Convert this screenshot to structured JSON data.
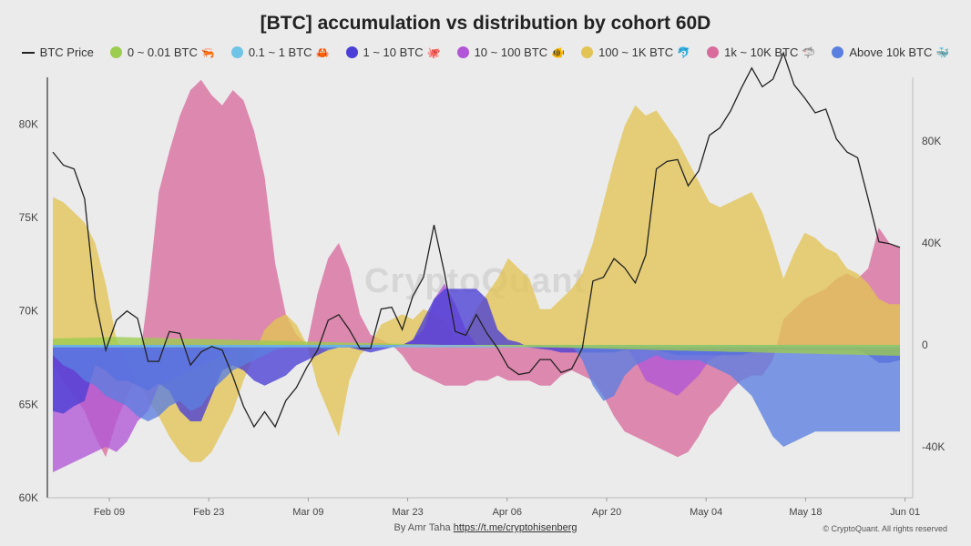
{
  "chart_data": {
    "type": "area",
    "title": "[BTC] accumulation vs distribution by cohort 60D",
    "x_ticks": [
      "Feb 09",
      "Feb 23",
      "Mar 09",
      "Mar 23",
      "Apr 06",
      "Apr 20",
      "May 04",
      "May 18",
      "Jun 01"
    ],
    "y_left_ticks": [
      "60K",
      "65K",
      "70K",
      "75K",
      "80K"
    ],
    "y_left_range": [
      60000,
      82500
    ],
    "y_right_ticks": [
      "-40K",
      "0",
      "40K",
      "80K"
    ],
    "y_right_range": [
      -60000,
      105000
    ],
    "watermark": "CryptoQuant",
    "price_series": {
      "name": "BTC Price",
      "color": "#222222",
      "values": [
        78500,
        77800,
        77600,
        76000,
        70600,
        67900,
        69500,
        70000,
        69600,
        67300,
        67300,
        68900,
        68800,
        67100,
        67800,
        68100,
        67900,
        66500,
        64900,
        63800,
        64600,
        63800,
        65200,
        65900,
        67000,
        67900,
        69500,
        69800,
        69000,
        68000,
        68000,
        70100,
        70200,
        69000,
        70800,
        71800,
        74600,
        72000,
        68900,
        68700,
        69800,
        68800,
        68000,
        67000,
        66600,
        66700,
        67400,
        67400,
        66700,
        66900,
        68000,
        71600,
        71800,
        72800,
        72300,
        71500,
        73000,
        77600,
        78000,
        78100,
        76700,
        77500,
        79400,
        79800,
        80700,
        81900,
        83000,
        82000,
        82400,
        83800,
        82100,
        81400,
        80600,
        80800,
        79200,
        78500,
        78200,
        76000,
        73700,
        73600,
        73400
      ]
    },
    "series": [
      {
        "name": "0 ~ 0.01 BTC",
        "color": "#9ccc50",
        "icon": "shrimp-icon",
        "values": [
          2500,
          2600,
          2700,
          2800,
          2900,
          3000,
          3100,
          3000,
          2900,
          2800,
          2700,
          2600,
          2500,
          2400,
          2300,
          2200,
          2100,
          2000,
          1900,
          1800,
          1700,
          1600,
          1500,
          1400,
          1300,
          1200,
          1100,
          1000,
          900,
          800,
          700,
          600,
          500,
          400,
          300,
          200,
          100,
          0,
          -100,
          -200,
          -300,
          -400,
          -500,
          -600,
          -700,
          -800,
          -900,
          -1000,
          -1100,
          -1200,
          -1300,
          -1400,
          -1500,
          -1600,
          -1700,
          -1800,
          -1900,
          -2000,
          -2100,
          -2200,
          -2300,
          -2400,
          -2500,
          -2600,
          -2700,
          -2800,
          -2900,
          -3000,
          -3100,
          -3200,
          -3300,
          -3400,
          -3500,
          -3600,
          -3700,
          -3800,
          -3900,
          -4000,
          -4100,
          -4200,
          -4300
        ]
      },
      {
        "name": "0.1 ~ 1 BTC",
        "color": "#6fc3e6",
        "icon": "crab-icon",
        "values": [
          -1000,
          -1000,
          -1000,
          -1000,
          -1000,
          -1000,
          -1000,
          -1000,
          -1000,
          -1000,
          -1000,
          -1000,
          -1000,
          -1000,
          -1000,
          -1000,
          -1000,
          -1000,
          -1000,
          -1000,
          -1000,
          -1000,
          -1000,
          -1000,
          -1000,
          -1000,
          -1000,
          -1000,
          -1000,
          -1000,
          -1000,
          -1000,
          -1000,
          -1000,
          -1000,
          -1000,
          -1000,
          -1000,
          -1000,
          -1000,
          -1000,
          -1000,
          -1000,
          -1000,
          -1000,
          -1000,
          -1000,
          -1000,
          -1000,
          -1000,
          -1000,
          -1000,
          -1000,
          -1000,
          -1000,
          -1000,
          -1000,
          -1000,
          -1000,
          -1000,
          -1000,
          -1000,
          -1000,
          -1000,
          -1000,
          -1000,
          -1000,
          -1000,
          -1000,
          -1000,
          -1000,
          -1000,
          -1000,
          -1000,
          -1000,
          -1000,
          -1000,
          -1000,
          -1000,
          -1000,
          -1000
        ]
      },
      {
        "name": "1 ~ 10 BTC",
        "color": "#4a3fd6",
        "icon": "octopus-icon",
        "values": [
          -26000,
          -27000,
          -24000,
          -22000,
          -8000,
          -10000,
          -14000,
          -14000,
          -16000,
          -18000,
          -15000,
          -18000,
          -26000,
          -30000,
          -30000,
          -20000,
          -10000,
          -8000,
          -10000,
          -14000,
          -16000,
          -14000,
          -12000,
          -8000,
          -6000,
          -4000,
          -2000,
          -1000,
          -1000,
          -2000,
          -3000,
          -2000,
          -1000,
          0,
          2000,
          10000,
          18000,
          22000,
          22000,
          22000,
          22000,
          18000,
          6000,
          2000,
          1000,
          -1000,
          -1500,
          -2000,
          -3000,
          -3000,
          -3000,
          -3000,
          -3000,
          -3000,
          -2000,
          -2000,
          -2000,
          -2000,
          -3000,
          -4000,
          -4000,
          -4000,
          -4000,
          -4000,
          -4000,
          -4000,
          -3000,
          -3000,
          -2000,
          -2000,
          -2000,
          -2000,
          -2000,
          -2000,
          -2000,
          -2000,
          -2000,
          -4000,
          -7000,
          -7000,
          -6000
        ]
      },
      {
        "name": "10 ~ 100 BTC",
        "color": "#b156d6",
        "icon": "fish-icon",
        "values": [
          -50000,
          -48000,
          -46000,
          -44000,
          -42000,
          -40000,
          -42000,
          -38000,
          -30000,
          -26000,
          -16000,
          -14000,
          -12000,
          -10000,
          -8000,
          -6000,
          -4000,
          -2000,
          0,
          0,
          0,
          0,
          0,
          0,
          0,
          0,
          0,
          0,
          0,
          0,
          0,
          0,
          0,
          0,
          2000,
          6000,
          18000,
          24000,
          16000,
          6000,
          0,
          0,
          0,
          0,
          0,
          0,
          0,
          0,
          0,
          0,
          0,
          0,
          0,
          0,
          0,
          -6000,
          -14000,
          -16000,
          -18000,
          -20000,
          -16000,
          -12000,
          -6000,
          -4000,
          -2000,
          0,
          0,
          0,
          0,
          0,
          0,
          0,
          0,
          0,
          0,
          0,
          0,
          0,
          0,
          0,
          0
        ]
      },
      {
        "name": "100 ~ 1K BTC",
        "color": "#e2c454",
        "icon": "dolphin-icon",
        "values": [
          58000,
          56000,
          52000,
          48000,
          40000,
          24000,
          2000,
          -6000,
          -14000,
          -22000,
          -28000,
          -36000,
          -42000,
          -46000,
          -46000,
          -42000,
          -34000,
          -26000,
          -14000,
          -4000,
          6000,
          10000,
          12000,
          8000,
          0,
          -16000,
          -26000,
          -36000,
          -14000,
          -4000,
          0,
          8000,
          10000,
          12000,
          10000,
          14000,
          12000,
          10000,
          2000,
          6000,
          14000,
          20000,
          26000,
          34000,
          30000,
          26000,
          14000,
          14000,
          18000,
          22000,
          28000,
          40000,
          56000,
          72000,
          86000,
          94000,
          90000,
          92000,
          86000,
          80000,
          72000,
          64000,
          56000,
          54000,
          56000,
          58000,
          60000,
          52000,
          40000,
          26000,
          36000,
          44000,
          42000,
          38000,
          36000,
          30000,
          28000,
          24000,
          18000,
          16000,
          16000
        ]
      },
      {
        "name": "1k ~ 10K BTC",
        "color": "#d86b9c",
        "icon": "shark-icon",
        "values": [
          -8000,
          -14000,
          -20000,
          -26000,
          -36000,
          -44000,
          -30000,
          -20000,
          -12000,
          20000,
          60000,
          76000,
          90000,
          100000,
          104000,
          98000,
          94000,
          100000,
          96000,
          84000,
          66000,
          32000,
          12000,
          4000,
          0,
          20000,
          34000,
          40000,
          30000,
          12000,
          4000,
          2000,
          0,
          -4000,
          -10000,
          -12000,
          -14000,
          -16000,
          -16000,
          -16000,
          -14000,
          -14000,
          -12000,
          -14000,
          -14000,
          -14000,
          -16000,
          -16000,
          -12000,
          -10000,
          -12000,
          -14000,
          -20000,
          -28000,
          -34000,
          -36000,
          -38000,
          -40000,
          -42000,
          -44000,
          -42000,
          -36000,
          -28000,
          -24000,
          -18000,
          -14000,
          -12000,
          -12000,
          -6000,
          10000,
          14000,
          18000,
          20000,
          22000,
          26000,
          28000,
          26000,
          30000,
          46000,
          40000,
          38000
        ]
      },
      {
        "name": "Above 10k BTC",
        "color": "#5b7fe0",
        "icon": "whale-icon",
        "values": [
          -4000,
          -8000,
          -10000,
          -14000,
          -16000,
          -20000,
          -22000,
          -24000,
          -28000,
          -30000,
          -28000,
          -24000,
          -22000,
          -26000,
          -24000,
          -18000,
          -14000,
          -10000,
          -8000,
          -6000,
          -4000,
          -2000,
          -1000,
          -1000,
          0,
          -1000,
          -2000,
          -1000,
          0,
          0,
          0,
          0,
          0,
          0,
          0,
          0,
          0,
          0,
          0,
          0,
          0,
          0,
          0,
          0,
          0,
          0,
          0,
          0,
          0,
          0,
          -6000,
          -16000,
          -22000,
          -20000,
          -12000,
          -8000,
          -6000,
          -4000,
          -6000,
          -6000,
          -6000,
          -6000,
          -8000,
          -10000,
          -12000,
          -16000,
          -20000,
          -28000,
          -36000,
          -40000,
          -38000,
          -36000,
          -34000,
          -34000,
          -34000,
          -34000,
          -34000,
          -34000,
          -34000,
          -34000,
          -34000
        ]
      }
    ],
    "grid": false,
    "legend": "top"
  },
  "footer": {
    "credit_prefix": "By Amr Taha",
    "credit_link": "https://t.me/cryptohisenberg",
    "copyright": "© CryptoQuant. All rights reserved"
  }
}
